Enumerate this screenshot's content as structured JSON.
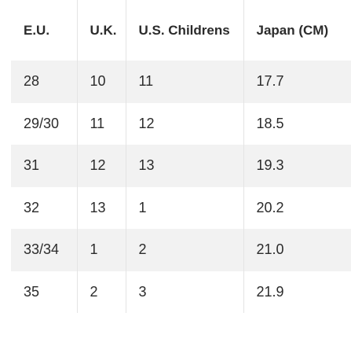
{
  "table": {
    "header": [
      "E.U.",
      "U.K.",
      "U.S. Childrens",
      "Japan (CM)"
    ],
    "rows": [
      [
        "28",
        "10",
        "11",
        "17.7"
      ],
      [
        "29/30",
        "11",
        "12",
        "18.5"
      ],
      [
        "31",
        "12",
        "13",
        "19.3"
      ],
      [
        "32",
        "13",
        "1",
        "20.2"
      ],
      [
        "33/34",
        "1",
        "2",
        "21.0"
      ],
      [
        "35",
        "2",
        "3",
        "21.9"
      ]
    ]
  }
}
